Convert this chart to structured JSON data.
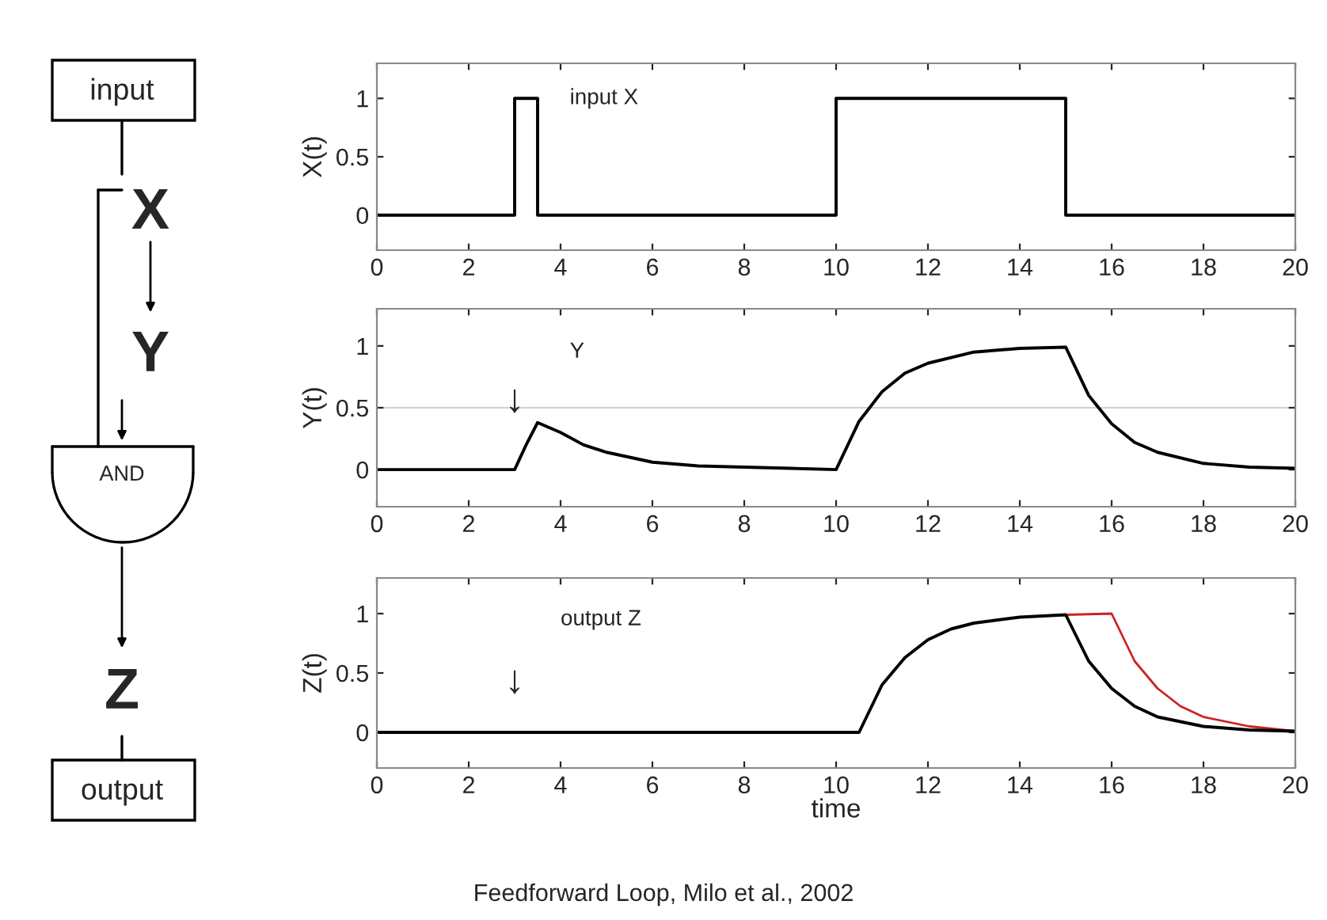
{
  "chart_data": [
    {
      "type": "other",
      "annotations": [
        "input",
        "X",
        "Y",
        "AND",
        "Z",
        "output"
      ]
    },
    {
      "type": "line",
      "ylabel": "X(t)",
      "xlim": [
        0,
        20
      ],
      "xticks": [
        0,
        2,
        4,
        6,
        8,
        10,
        12,
        14,
        16,
        18,
        20
      ],
      "ylim": [
        -0.3,
        1.3
      ],
      "yticks": [
        0,
        0.5,
        1
      ],
      "series": [
        {
          "name": "input X",
          "color": "#000000",
          "x": [
            0,
            3,
            3,
            3.5,
            3.5,
            10,
            10,
            15,
            15,
            20
          ],
          "values": [
            0,
            0,
            1,
            1,
            0,
            0,
            1,
            1,
            0,
            0
          ]
        }
      ]
    },
    {
      "type": "line",
      "ylabel": "Y(t)",
      "xlim": [
        0,
        20
      ],
      "xticks": [
        0,
        2,
        4,
        6,
        8,
        10,
        12,
        14,
        16,
        18,
        20
      ],
      "ylim": [
        -0.3,
        1.3
      ],
      "yticks": [
        0,
        0.5,
        1
      ],
      "ref_lines": [
        {
          "axis": "y",
          "value": 0.5,
          "color": "#d0d0d0"
        }
      ],
      "annotations": [
        {
          "text": "↓",
          "x": 3,
          "y": 0.55
        }
      ],
      "series": [
        {
          "name": "Y",
          "color": "#000000",
          "x": [
            0,
            3,
            3.25,
            3.5,
            4,
            4.5,
            5,
            6,
            7,
            8,
            9,
            10,
            10.5,
            11,
            11.5,
            12,
            13,
            14,
            15,
            15.5,
            16,
            16.5,
            17,
            18,
            19,
            20
          ],
          "values": [
            0,
            0,
            0.2,
            0.38,
            0.3,
            0.2,
            0.14,
            0.06,
            0.03,
            0.02,
            0.01,
            0,
            0.39,
            0.63,
            0.78,
            0.86,
            0.95,
            0.98,
            0.99,
            0.6,
            0.37,
            0.22,
            0.14,
            0.05,
            0.02,
            0.01
          ]
        }
      ]
    },
    {
      "type": "line",
      "ylabel": "Z(t)",
      "xlabel": "time",
      "xlim": [
        0,
        20
      ],
      "xticks": [
        0,
        2,
        4,
        6,
        8,
        10,
        12,
        14,
        16,
        18,
        20
      ],
      "ylim": [
        -0.3,
        1.3
      ],
      "yticks": [
        0,
        0.5,
        1
      ],
      "annotations": [
        "↓",
        "Feedforward Loop, Milo et al., 2002"
      ],
      "series": [
        {
          "color": "#cc2222",
          "x": [
            15,
            16,
            16.5,
            17,
            17.5,
            18,
            19,
            20
          ],
          "values": [
            0.99,
            1.0,
            0.6,
            0.37,
            0.22,
            0.13,
            0.05,
            0.01
          ]
        },
        {
          "name": "output Z",
          "color": "#000000",
          "x": [
            0,
            10.5,
            11,
            11.5,
            12,
            12.5,
            13,
            14,
            15,
            15.5,
            16,
            16.5,
            17,
            18,
            19,
            20
          ],
          "values": [
            0,
            0,
            0.4,
            0.63,
            0.78,
            0.87,
            0.92,
            0.97,
            0.99,
            0.6,
            0.37,
            0.22,
            0.13,
            0.05,
            0.02,
            0.01
          ]
        }
      ]
    }
  ]
}
